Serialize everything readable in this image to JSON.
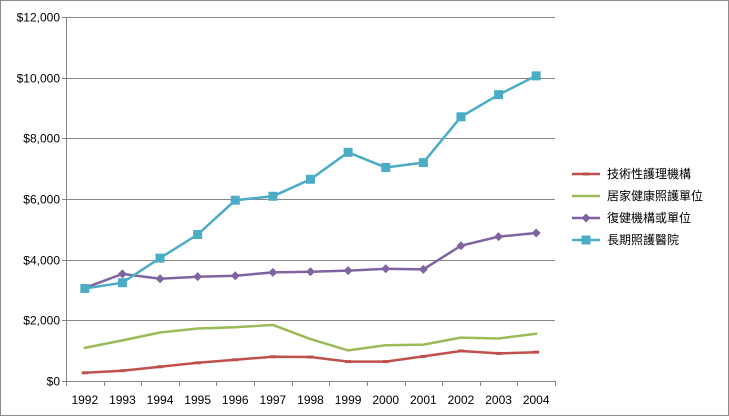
{
  "chart_data": {
    "type": "line",
    "title": "",
    "xlabel": "",
    "ylabel": "",
    "x": [
      "1992",
      "1993",
      "1994",
      "1995",
      "1996",
      "1997",
      "1998",
      "1999",
      "2000",
      "2001",
      "2002",
      "2003",
      "2004"
    ],
    "ylim": [
      0,
      12000
    ],
    "yticks": [
      0,
      2000,
      4000,
      6000,
      8000,
      10000,
      12000
    ],
    "ytick_labels": [
      "$0",
      "$2,000",
      "$4,000",
      "$6,000",
      "$8,000",
      "$10,000",
      "$12,000"
    ],
    "grid": "horizontal",
    "legend_position": "right",
    "series": [
      {
        "name": "技術性護理機構",
        "color": "#c0504d",
        "marker": "dash",
        "values": [
          270,
          340,
          470,
          600,
          700,
          800,
          790,
          640,
          640,
          810,
          990,
          910,
          950
        ]
      },
      {
        "name": "居家健康照護單位",
        "color": "#9bbb59",
        "marker": "none",
        "values": [
          1090,
          1340,
          1600,
          1730,
          1770,
          1850,
          1380,
          1010,
          1180,
          1200,
          1430,
          1400,
          1560
        ]
      },
      {
        "name": "復健機構或單位",
        "color": "#8064a2",
        "marker": "diamond",
        "values": [
          3070,
          3530,
          3370,
          3440,
          3470,
          3580,
          3600,
          3640,
          3700,
          3680,
          4460,
          4760,
          4880
        ]
      },
      {
        "name": "長期照護醫院",
        "color": "#4bacc6",
        "marker": "square",
        "values": [
          3050,
          3240,
          4050,
          4830,
          5960,
          6090,
          6650,
          7540,
          7040,
          7200,
          8710,
          9440,
          10060
        ]
      }
    ]
  }
}
